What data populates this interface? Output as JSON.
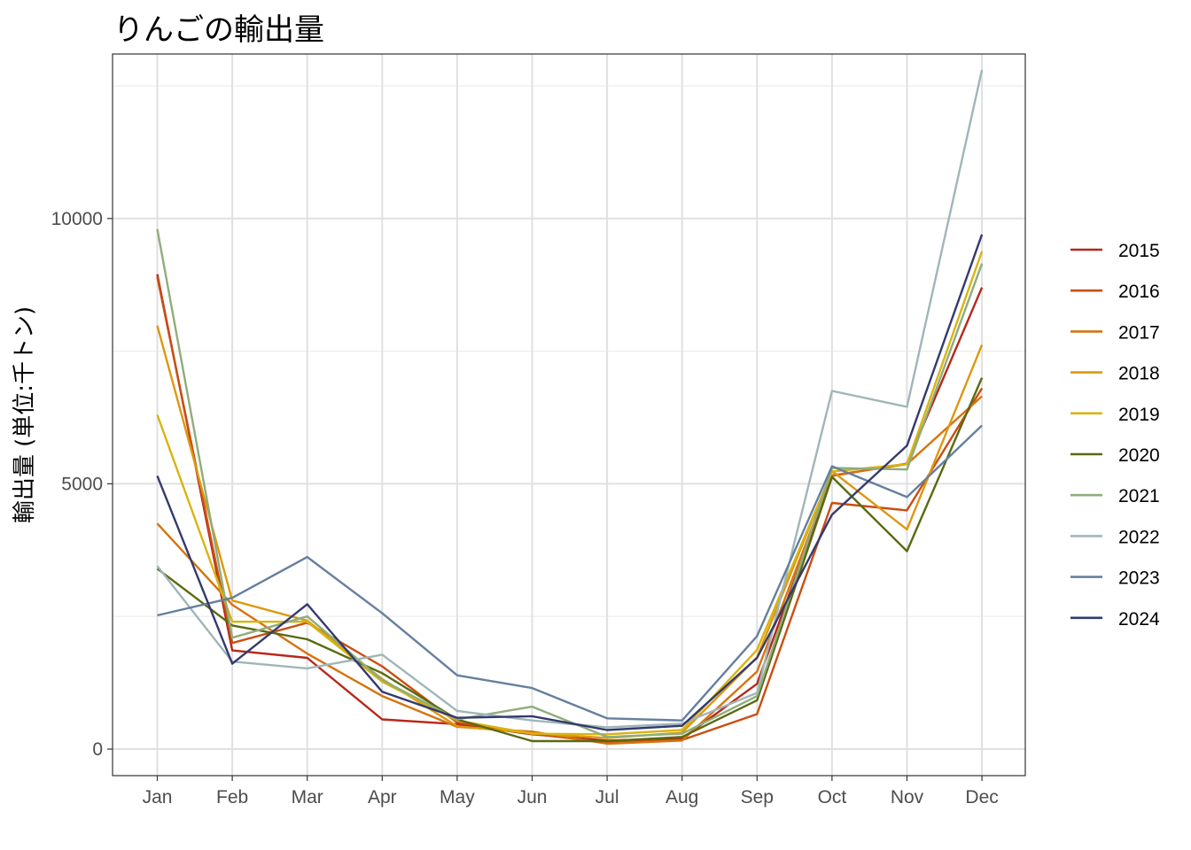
{
  "chart_data": {
    "type": "line",
    "title": "りんごの輸出量",
    "xlabel": "",
    "ylabel": "輸出量 (単位:千トン)",
    "categories": [
      "Jan",
      "Feb",
      "Mar",
      "Apr",
      "May",
      "Jun",
      "Jul",
      "Aug",
      "Sep",
      "Oct",
      "Nov",
      "Dec"
    ],
    "ylim": [
      -500,
      13100
    ],
    "yticks": [
      0,
      5000,
      10000
    ],
    "grid": true,
    "legend": "right",
    "series": [
      {
        "name": "2015",
        "color": "#b8271a",
        "values": [
          8950,
          1860,
          1720,
          560,
          470,
          280,
          160,
          200,
          1230,
          5150,
          5380,
          8700
        ]
      },
      {
        "name": "2016",
        "color": "#c94e11",
        "values": [
          8900,
          2000,
          2380,
          1560,
          500,
          290,
          120,
          170,
          660,
          4640,
          4500,
          6800
        ]
      },
      {
        "name": "2017",
        "color": "#d6730f",
        "values": [
          4250,
          2720,
          1800,
          1000,
          420,
          330,
          100,
          160,
          1460,
          5160,
          5370,
          6650
        ]
      },
      {
        "name": "2018",
        "color": "#dd980f",
        "values": [
          7980,
          2800,
          2420,
          1320,
          430,
          300,
          210,
          310,
          1730,
          5240,
          4140,
          7620
        ]
      },
      {
        "name": "2019",
        "color": "#d9b40f",
        "values": [
          6300,
          2400,
          2400,
          1270,
          540,
          290,
          280,
          360,
          1870,
          5230,
          5370,
          9380
        ]
      },
      {
        "name": "2020",
        "color": "#5a6a10",
        "values": [
          3400,
          2330,
          2070,
          1430,
          560,
          150,
          150,
          230,
          920,
          5130,
          3730,
          7000
        ]
      },
      {
        "name": "2021",
        "color": "#8fad7b",
        "values": [
          9800,
          2100,
          2500,
          1300,
          560,
          800,
          230,
          290,
          1000,
          5300,
          5270,
          9150
        ]
      },
      {
        "name": "2022",
        "color": "#9fb6b8",
        "values": [
          3450,
          1650,
          1520,
          1780,
          720,
          540,
          410,
          480,
          1060,
          6750,
          6450,
          12800
        ]
      },
      {
        "name": "2023",
        "color": "#667f9e",
        "values": [
          2520,
          2850,
          3620,
          2560,
          1390,
          1150,
          580,
          540,
          2130,
          5330,
          4750,
          6100
        ]
      },
      {
        "name": "2024",
        "color": "#343a6e",
        "values": [
          5150,
          1610,
          2730,
          1080,
          590,
          620,
          360,
          440,
          1720,
          4420,
          5720,
          9700
        ]
      }
    ]
  }
}
